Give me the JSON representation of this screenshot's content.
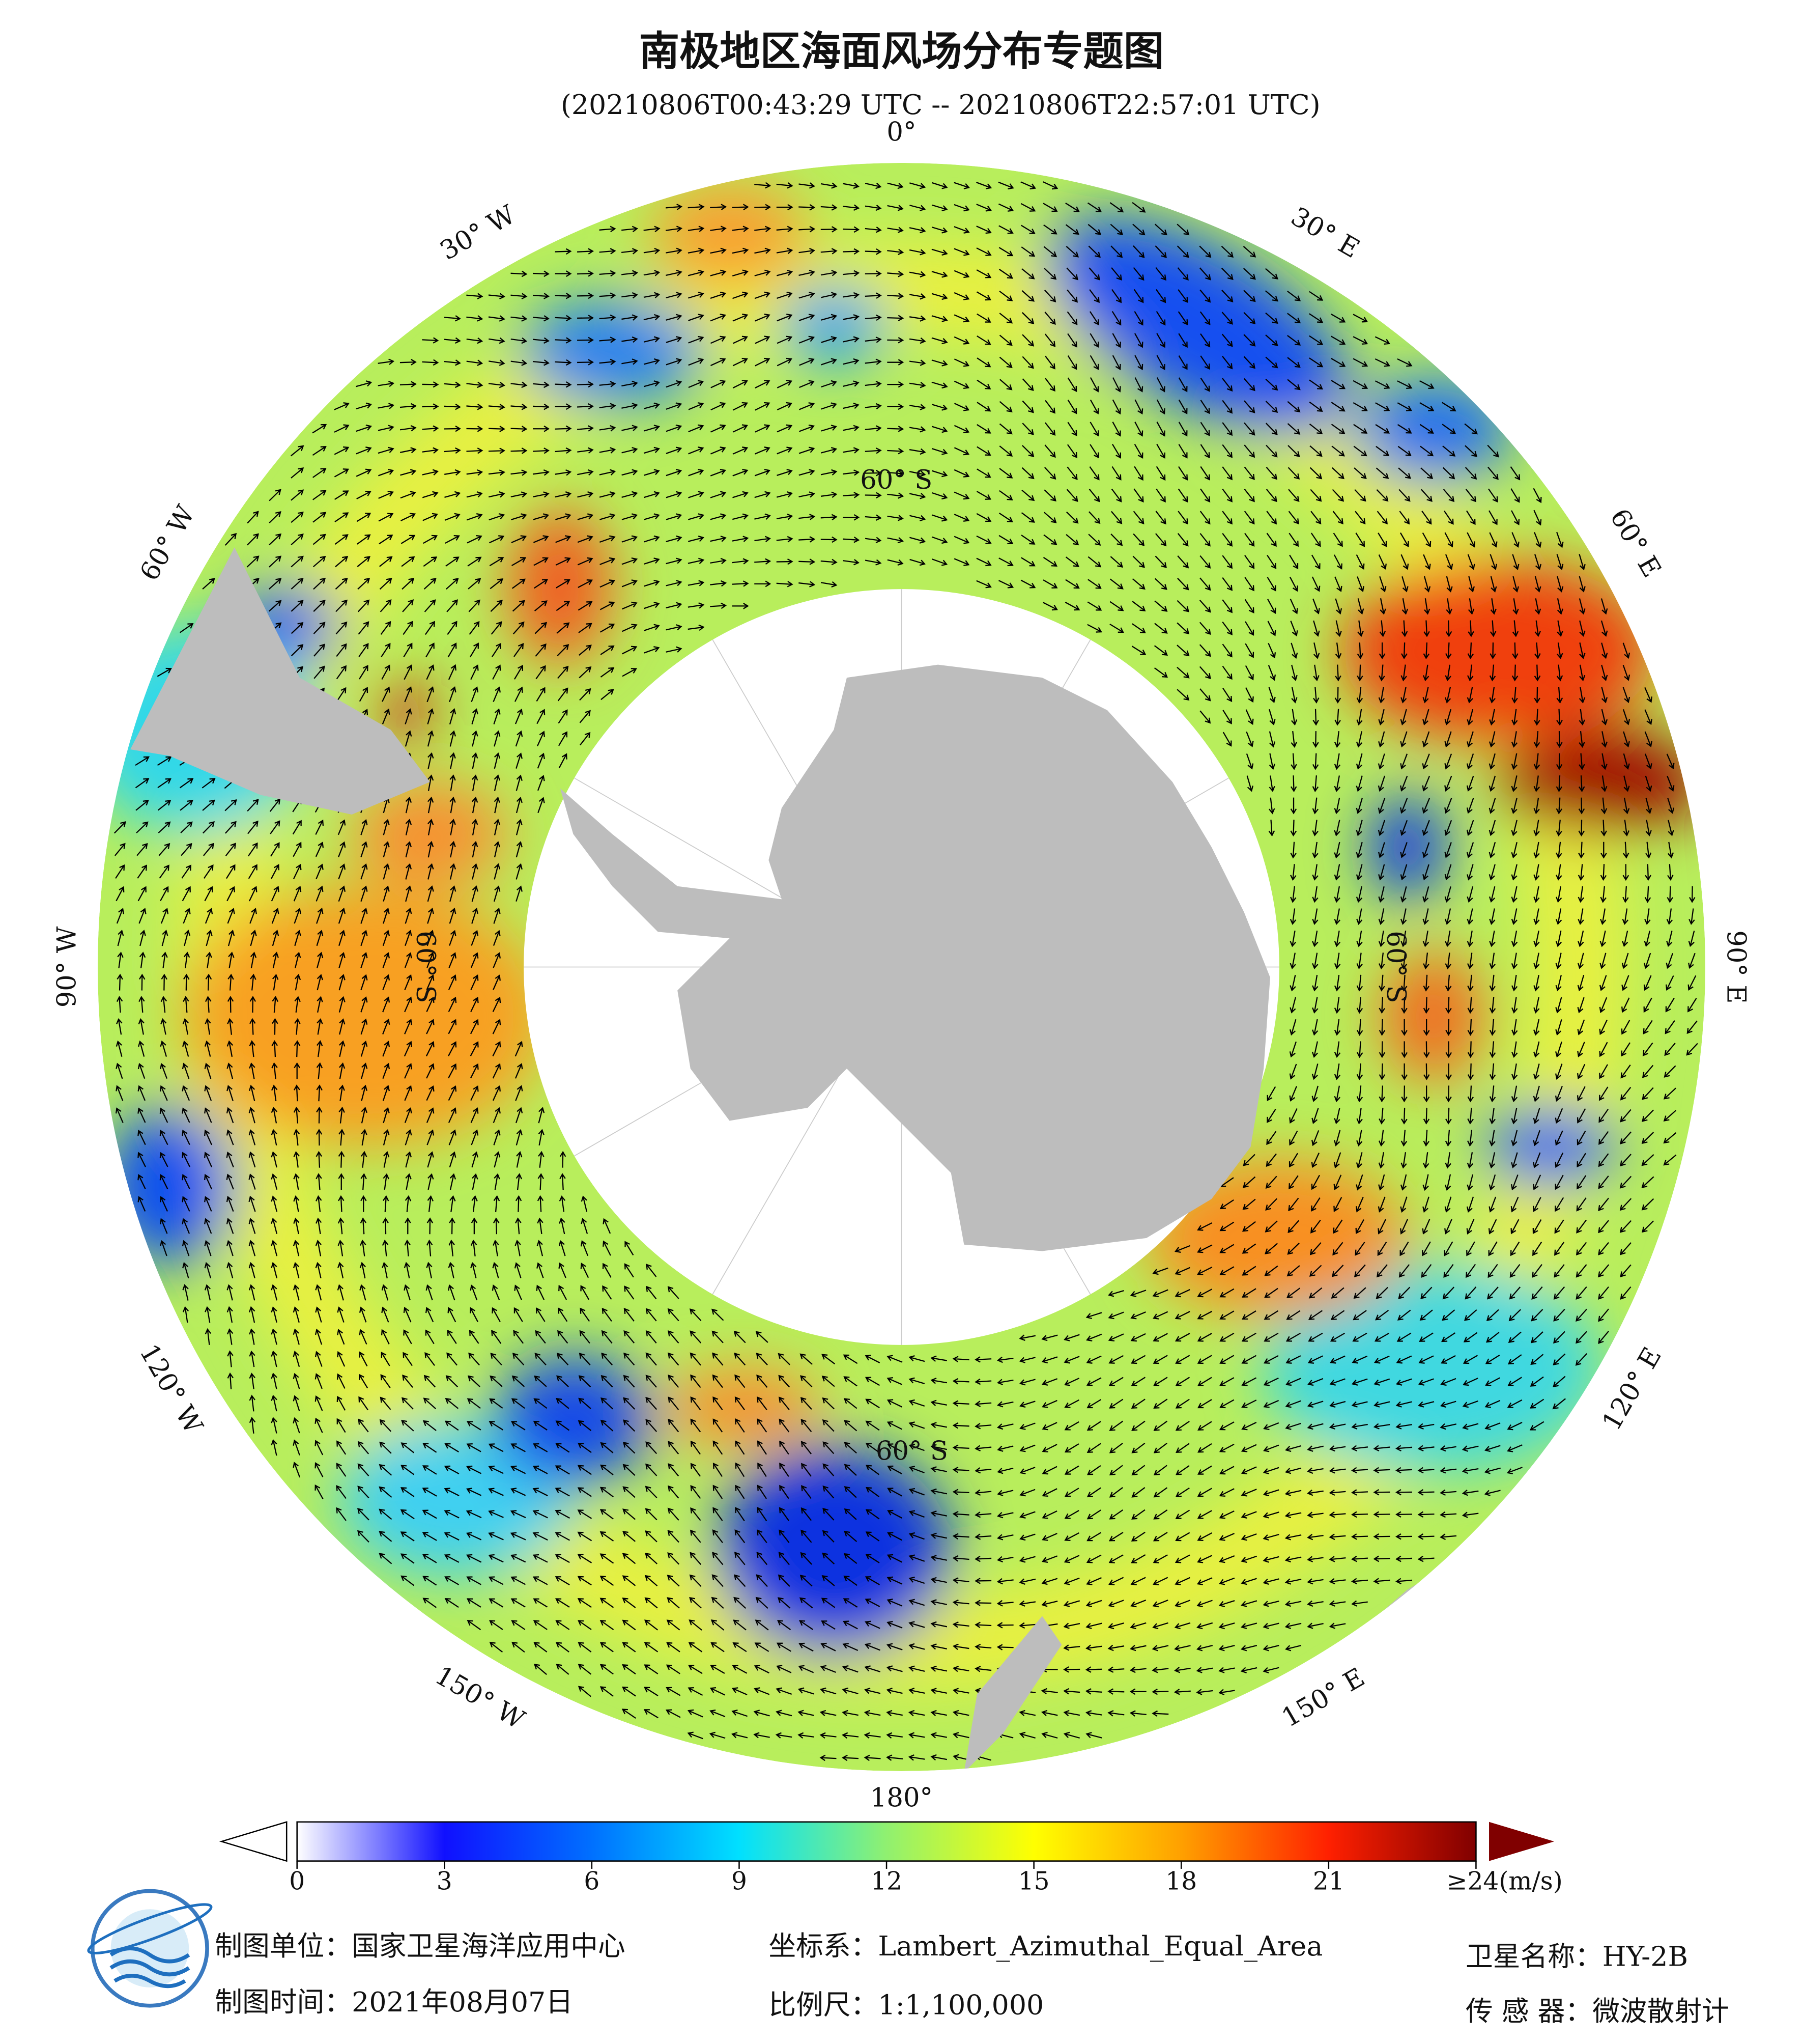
{
  "title": "南极地区海面风场分布专题图",
  "subtitle": "(20210806T00:43:29 UTC -- 20210806T22:57:01 UTC)",
  "longitude_labels": [
    "0°",
    "30° E",
    "60° E",
    "90° E",
    "120° E",
    "150° E",
    "180°",
    "150° W",
    "120° W",
    "90° W",
    "60° W",
    "30° W"
  ],
  "latitude_labels": [
    "60° S",
    "60° S",
    "60° S",
    "60° S"
  ],
  "colorbar": {
    "range": [
      0,
      24
    ],
    "ticks": [
      0,
      3,
      6,
      9,
      12,
      15,
      18,
      21,
      {
        "value": 24,
        "label": "≥24(m/s)"
      }
    ],
    "colors": [
      "#ffffff",
      "#1010ff",
      "#0070ff",
      "#00e0ff",
      "#90f070",
      "#ffff00",
      "#ffa000",
      "#ff2000",
      "#800000"
    ]
  },
  "footer": {
    "unit": "制图单位：国家卫星海洋应用中心",
    "date": "制图时间：2021年08月07日",
    "projection": "坐标系：Lambert_Azimuthal_Equal_Area",
    "scale": "比例尺：1:1,100,000",
    "satellite": "卫星名称：HY-2B",
    "sensor": "传 感 器：微波散射计"
  }
}
